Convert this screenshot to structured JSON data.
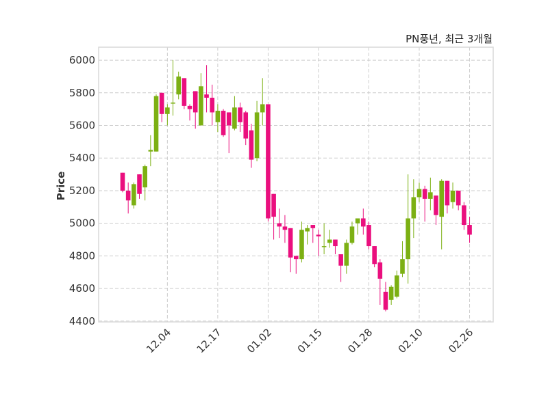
{
  "chart_data": {
    "type": "candlestick",
    "title": "PN풍년, 최근 3개월",
    "xlabel": "",
    "ylabel": "Price",
    "ylim": [
      4395,
      6080
    ],
    "yticks": [
      4400,
      4600,
      4800,
      5000,
      5200,
      5400,
      5600,
      5800,
      6000
    ],
    "xticks": [
      {
        "index": 8,
        "label": "12.04"
      },
      {
        "index": 17,
        "label": "12.17"
      },
      {
        "index": 26,
        "label": "01.02"
      },
      {
        "index": 35,
        "label": "01.15"
      },
      {
        "index": 44,
        "label": "01.28"
      },
      {
        "index": 53,
        "label": "02.10"
      },
      {
        "index": 62,
        "label": "02.26"
      }
    ],
    "grid": true,
    "colors": {
      "up": "#7cb013",
      "down": "#ea0f7e",
      "grid": "#cccccc",
      "frame": "#d9d9d9"
    },
    "ohlc": [
      [
        5310,
        5310,
        5190,
        5200
      ],
      [
        5200,
        5250,
        5060,
        5140
      ],
      [
        5110,
        5250,
        5090,
        5240
      ],
      [
        5300,
        5300,
        5150,
        5180
      ],
      [
        5220,
        5360,
        5140,
        5350
      ],
      [
        5440,
        5540,
        5350,
        5450
      ],
      [
        5440,
        5790,
        5440,
        5780
      ],
      [
        5800,
        5800,
        5620,
        5670
      ],
      [
        5670,
        5730,
        5600,
        5710
      ],
      [
        5740,
        6000,
        5660,
        5740
      ],
      [
        5790,
        5930,
        5760,
        5900
      ],
      [
        5890,
        5890,
        5700,
        5720
      ],
      [
        5720,
        5730,
        5630,
        5700
      ],
      [
        5810,
        5810,
        5580,
        5680
      ],
      [
        5600,
        5920,
        5600,
        5840
      ],
      [
        5790,
        5970,
        5680,
        5770
      ],
      [
        5770,
        5850,
        5600,
        5680
      ],
      [
        5620,
        5730,
        5560,
        5690
      ],
      [
        5690,
        5700,
        5530,
        5540
      ],
      [
        5680,
        5680,
        5430,
        5600
      ],
      [
        5580,
        5780,
        5570,
        5710
      ],
      [
        5710,
        5740,
        5560,
        5620
      ],
      [
        5680,
        5690,
        5480,
        5520
      ],
      [
        5570,
        5610,
        5340,
        5390
      ],
      [
        5400,
        5750,
        5380,
        5680
      ],
      [
        5680,
        5890,
        5600,
        5730
      ],
      [
        5730,
        5730,
        5010,
        5030
      ],
      [
        5180,
        5180,
        4900,
        5040
      ],
      [
        5000,
        5090,
        4910,
        4980
      ],
      [
        4980,
        5050,
        4880,
        4960
      ],
      [
        4970,
        4970,
        4700,
        4790
      ],
      [
        4800,
        4800,
        4690,
        4780
      ],
      [
        4780,
        5010,
        4760,
        4960
      ],
      [
        4950,
        4990,
        4870,
        4970
      ],
      [
        4990,
        4990,
        4880,
        4970
      ],
      [
        4930,
        4960,
        4800,
        4920
      ],
      [
        4860,
        5000,
        4810,
        4860
      ],
      [
        4880,
        4960,
        4850,
        4900
      ],
      [
        4900,
        4900,
        4810,
        4860
      ],
      [
        4810,
        4810,
        4640,
        4740
      ],
      [
        4740,
        4900,
        4690,
        4880
      ],
      [
        4880,
        5010,
        4870,
        4980
      ],
      [
        5000,
        5030,
        4930,
        5030
      ],
      [
        5030,
        5090,
        4930,
        4980
      ],
      [
        4990,
        5010,
        4840,
        4860
      ],
      [
        4860,
        4860,
        4730,
        4750
      ],
      [
        4760,
        4780,
        4500,
        4660
      ],
      [
        4580,
        4640,
        4460,
        4470
      ],
      [
        4530,
        4620,
        4500,
        4610
      ],
      [
        4550,
        4710,
        4540,
        4680
      ],
      [
        4690,
        4890,
        4670,
        4780
      ],
      [
        4780,
        5300,
        4630,
        5030
      ],
      [
        5030,
        5270,
        4910,
        5160
      ],
      [
        5160,
        5250,
        5130,
        5210
      ],
      [
        5210,
        5230,
        5010,
        5150
      ],
      [
        5150,
        5280,
        5080,
        5190
      ],
      [
        5170,
        5170,
        4990,
        5050
      ],
      [
        5040,
        5270,
        4840,
        5260
      ],
      [
        5260,
        5260,
        5060,
        5110
      ],
      [
        5130,
        5250,
        5090,
        5200
      ],
      [
        5200,
        5200,
        5080,
        5110
      ],
      [
        5110,
        5130,
        4960,
        4990
      ],
      [
        4990,
        5040,
        4880,
        4930
      ]
    ]
  }
}
